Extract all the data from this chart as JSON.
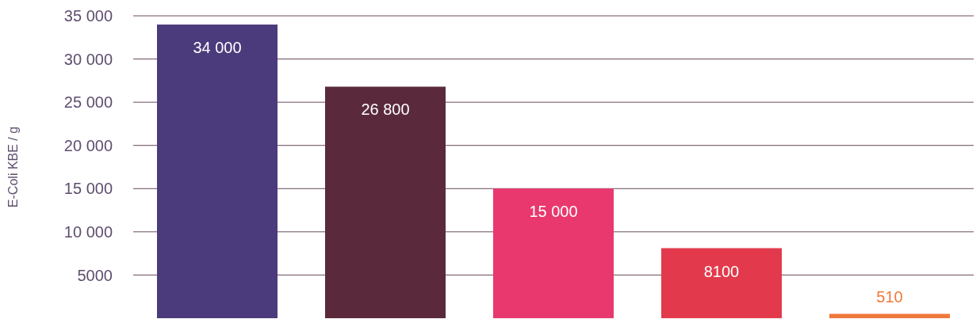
{
  "chart_data": {
    "type": "bar",
    "ylabel": "E-Coli KBE / g",
    "categories": [
      null,
      null,
      null,
      null,
      null
    ],
    "values": [
      34000,
      26800,
      15000,
      8100,
      510
    ],
    "colors": [
      "#4b3b7c",
      "#5a2a3c",
      "#e8386e",
      "#e23a4c",
      "#f0783c"
    ],
    "value_labels": [
      "34 000",
      "26 800",
      "15 000",
      "8100",
      "510"
    ],
    "ylim": [
      0,
      35000
    ],
    "yticks": [
      {
        "value": 5000,
        "label": "5000"
      },
      {
        "value": 10000,
        "label": "10 000"
      },
      {
        "value": 15000,
        "label": "15 000"
      },
      {
        "value": 20000,
        "label": "20 000"
      },
      {
        "value": 25000,
        "label": "25 000"
      },
      {
        "value": 30000,
        "label": "30 000"
      },
      {
        "value": 35000,
        "label": "35 000"
      }
    ],
    "grid": "y"
  }
}
